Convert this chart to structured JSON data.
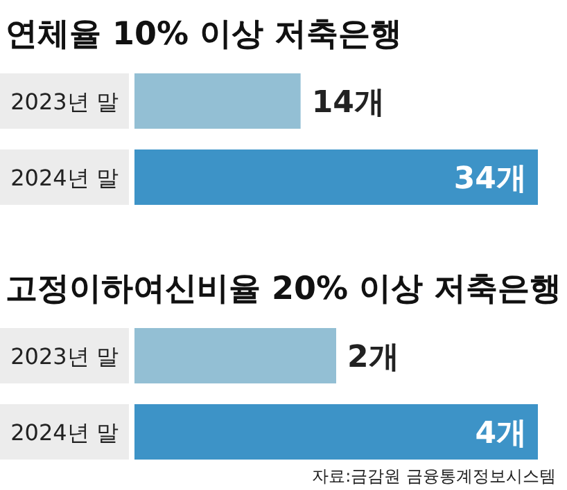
{
  "chart_data": [
    {
      "type": "bar",
      "orientation": "horizontal",
      "title": "연체율 10% 이상 저축은행",
      "categories": [
        "2023년 말",
        "2024년 말"
      ],
      "values": [
        14,
        34
      ],
      "colors": [
        "#93bfd4",
        "#3d93c7"
      ],
      "value_labels": [
        "14개",
        "34개"
      ]
    },
    {
      "type": "bar",
      "orientation": "horizontal",
      "title": "고정이하여신비율 20% 이상 저축은행",
      "categories": [
        "2023년 말",
        "2024년 말"
      ],
      "values": [
        2,
        4
      ],
      "colors": [
        "#93bfd4",
        "#3d93c7"
      ],
      "value_labels": [
        "2개",
        "4개"
      ],
      "annotations": [
        "자료:금감원 금융통계정보시스템"
      ]
    }
  ]
}
